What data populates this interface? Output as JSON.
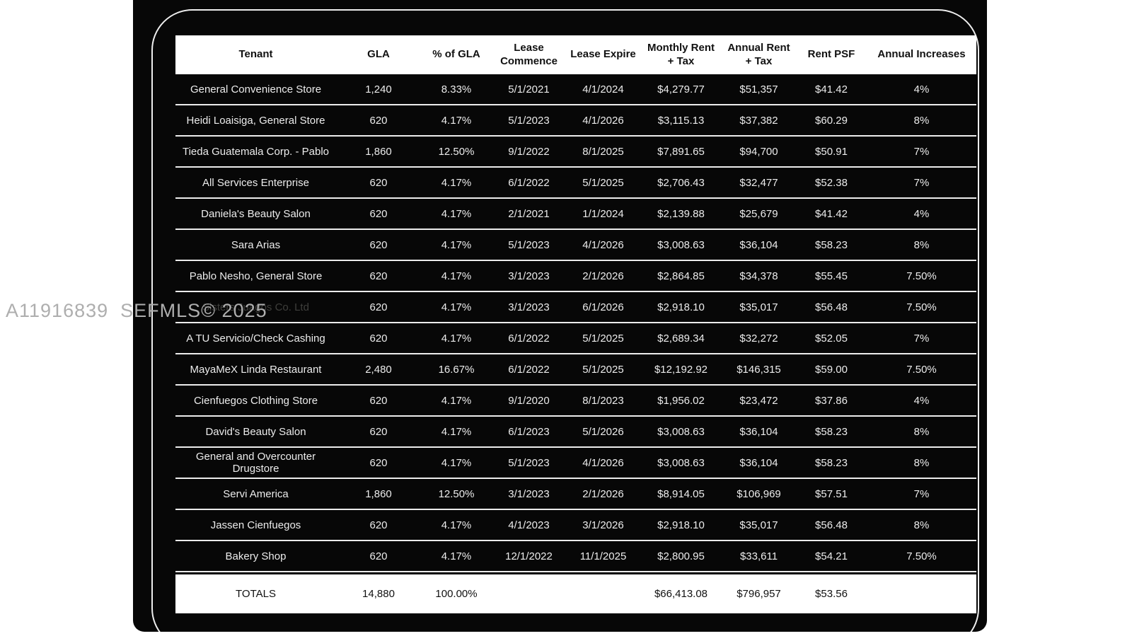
{
  "watermark": {
    "text": "A11916839  SEFMLS© 2025"
  },
  "accent_colors": {
    "card_background": "#070707",
    "table_header_bg": "#ffffff",
    "row_text": "#ececec",
    "separator": "#ececec",
    "watermark_gray": "#aeaeae"
  },
  "table": {
    "columns": [
      {
        "label": "Tenant"
      },
      {
        "label": "GLA"
      },
      {
        "label": "% of GLA"
      },
      {
        "label": "Lease Commence"
      },
      {
        "label": "Lease Expire"
      },
      {
        "label": "Monthly Rent + Tax"
      },
      {
        "label": "Annual Rent + Tax"
      },
      {
        "label": "Rent PSF"
      },
      {
        "label": "Annual Increases"
      }
    ],
    "rows": [
      {
        "cells": [
          "General Convenience Store",
          "1,240",
          "8.33%",
          "5/1/2021",
          "4/1/2024",
          "$4,279.77",
          "$51,357",
          "$41.42",
          "4%"
        ],
        "obscured": false
      },
      {
        "cells": [
          "Heidi Loaisiga, General Store",
          "620",
          "4.17%",
          "5/1/2023",
          "4/1/2026",
          "$3,115.13",
          "$37,382",
          "$60.29",
          "8%"
        ],
        "obscured": false
      },
      {
        "cells": [
          "Tieda Guatemala Corp. - Pablo",
          "1,860",
          "12.50%",
          "9/1/2022",
          "8/1/2025",
          "$7,891.65",
          "$94,700",
          "$50.91",
          "7%"
        ],
        "obscured": false
      },
      {
        "cells": [
          "All Services Enterprise",
          "620",
          "4.17%",
          "6/1/2022",
          "5/1/2025",
          "$2,706.43",
          "$32,477",
          "$52.38",
          "7%"
        ],
        "obscured": false
      },
      {
        "cells": [
          "Daniela's Beauty Salon",
          "620",
          "4.17%",
          "2/1/2021",
          "1/1/2024",
          "$2,139.88",
          "$25,679",
          "$41.42",
          "4%"
        ],
        "obscured": false
      },
      {
        "cells": [
          "Sara Arias",
          "620",
          "4.17%",
          "5/1/2023",
          "4/1/2026",
          "$3,008.63",
          "$36,104",
          "$58.23",
          "8%"
        ],
        "obscured": false
      },
      {
        "cells": [
          "Pablo Nesho, General Store",
          "620",
          "4.17%",
          "3/1/2023",
          "2/1/2026",
          "$2,864.85",
          "$34,378",
          "$55.45",
          "7.50%"
        ],
        "obscured": false
      },
      {
        "cells": [
          "Sisters Juagos Co. Ltd",
          "620",
          "4.17%",
          "3/1/2023",
          "6/1/2026",
          "$2,918.10",
          "$35,017",
          "$56.48",
          "7.50%"
        ],
        "obscured": true
      },
      {
        "cells": [
          "A TU Servicio/Check Cashing",
          "620",
          "4.17%",
          "6/1/2022",
          "5/1/2025",
          "$2,689.34",
          "$32,272",
          "$52.05",
          "7%"
        ],
        "obscured": false
      },
      {
        "cells": [
          "MayaMeX Linda Restaurant",
          "2,480",
          "16.67%",
          "6/1/2022",
          "5/1/2025",
          "$12,192.92",
          "$146,315",
          "$59.00",
          "7.50%"
        ],
        "obscured": false
      },
      {
        "cells": [
          "Cienfuegos Clothing Store",
          "620",
          "4.17%",
          "9/1/2020",
          "8/1/2023",
          "$1,956.02",
          "$23,472",
          "$37.86",
          "4%"
        ],
        "obscured": false
      },
      {
        "cells": [
          "David's Beauty Salon",
          "620",
          "4.17%",
          "6/1/2023",
          "5/1/2026",
          "$3,008.63",
          "$36,104",
          "$58.23",
          "8%"
        ],
        "obscured": false
      },
      {
        "cells": [
          "General and Overcounter Drugstore",
          "620",
          "4.17%",
          "5/1/2023",
          "4/1/2026",
          "$3,008.63",
          "$36,104",
          "$58.23",
          "8%"
        ],
        "obscured": false
      },
      {
        "cells": [
          "Servi America",
          "1,860",
          "12.50%",
          "3/1/2023",
          "2/1/2026",
          "$8,914.05",
          "$106,969",
          "$57.51",
          "7%"
        ],
        "obscured": false
      },
      {
        "cells": [
          "Jassen Cienfuegos",
          "620",
          "4.17%",
          "4/1/2023",
          "3/1/2026",
          "$2,918.10",
          "$35,017",
          "$56.48",
          "8%"
        ],
        "obscured": false
      },
      {
        "cells": [
          "Bakery Shop",
          "620",
          "4.17%",
          "12/1/2022",
          "11/1/2025",
          "$2,800.95",
          "$33,611",
          "$54.21",
          "7.50%"
        ],
        "obscured": false
      }
    ],
    "totals": {
      "cells": [
        "TOTALS",
        "14,880",
        "100.00%",
        "",
        "",
        "$66,413.08",
        "$796,957",
        "$53.56",
        ""
      ]
    }
  }
}
